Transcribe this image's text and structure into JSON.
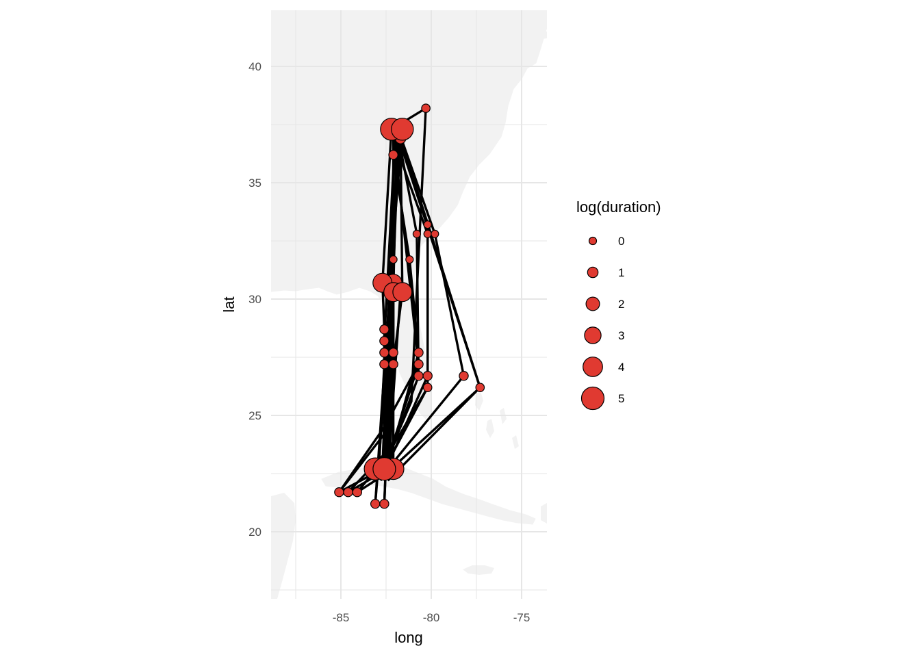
{
  "chart_data": {
    "type": "scatter",
    "subtype": "map-with-paths",
    "basemap": "eastern-us-florida-caribbean",
    "xlabel": "long",
    "ylabel": "lat",
    "xlim": [
      -88.9,
      -73.9
    ],
    "ylim": [
      17.3,
      42.3
    ],
    "x_ticks": [
      -85,
      -80,
      -75
    ],
    "x_tick_labels": [
      "-85",
      "-80",
      "-75"
    ],
    "y_ticks": [
      20,
      25,
      30,
      35,
      40
    ],
    "y_tick_labels": [
      "20",
      "25",
      "30",
      "35",
      "40"
    ],
    "grid": true,
    "legend": {
      "title": "log(duration)",
      "position": "right",
      "entries": [
        {
          "label": "0",
          "value": 0
        },
        {
          "label": "1",
          "value": 1
        },
        {
          "label": "2",
          "value": 2
        },
        {
          "label": "3",
          "value": 3
        },
        {
          "label": "4",
          "value": 4
        },
        {
          "label": "5",
          "value": 5
        }
      ]
    },
    "point_color": "#E03A31",
    "point_outline": "#000000",
    "line_color": "#000000",
    "land_color": "#f2f2f2",
    "grid_color": "#e6e6e6",
    "points": [
      {
        "long": -80.3,
        "lat": 38.2,
        "size": 0.3
      },
      {
        "long": -82.2,
        "lat": 37.3,
        "size": 4.8
      },
      {
        "long": -81.6,
        "lat": 37.3,
        "size": 4.8
      },
      {
        "long": -81.7,
        "lat": 36.9,
        "size": 1.0
      },
      {
        "long": -82.1,
        "lat": 36.2,
        "size": 0.5
      },
      {
        "long": -80.2,
        "lat": 33.2,
        "size": 0.0
      },
      {
        "long": -80.8,
        "lat": 32.8,
        "size": 0.0
      },
      {
        "long": -80.2,
        "lat": 32.8,
        "size": 0.0
      },
      {
        "long": -79.8,
        "lat": 32.8,
        "size": 0.0
      },
      {
        "long": -82.1,
        "lat": 31.7,
        "size": 0.0
      },
      {
        "long": -81.2,
        "lat": 31.7,
        "size": 0.0
      },
      {
        "long": -82.7,
        "lat": 30.7,
        "size": 3.8
      },
      {
        "long": -82.1,
        "lat": 30.7,
        "size": 3.2
      },
      {
        "long": -82.1,
        "lat": 30.3,
        "size": 3.8
      },
      {
        "long": -81.6,
        "lat": 30.3,
        "size": 3.8
      },
      {
        "long": -82.6,
        "lat": 28.7,
        "size": 0.5
      },
      {
        "long": -82.6,
        "lat": 28.2,
        "size": 0.5
      },
      {
        "long": -82.6,
        "lat": 27.7,
        "size": 0.5
      },
      {
        "long": -82.1,
        "lat": 27.7,
        "size": 0.5
      },
      {
        "long": -80.7,
        "lat": 27.7,
        "size": 0.5
      },
      {
        "long": -82.6,
        "lat": 27.2,
        "size": 0.5
      },
      {
        "long": -82.1,
        "lat": 27.2,
        "size": 0.5
      },
      {
        "long": -80.7,
        "lat": 27.2,
        "size": 0.5
      },
      {
        "long": -80.7,
        "lat": 26.7,
        "size": 0.5
      },
      {
        "long": -80.2,
        "lat": 26.7,
        "size": 0.5
      },
      {
        "long": -78.2,
        "lat": 26.7,
        "size": 0.5
      },
      {
        "long": -80.2,
        "lat": 26.2,
        "size": 0.3
      },
      {
        "long": -77.3,
        "lat": 26.2,
        "size": 0.3
      },
      {
        "long": -83.1,
        "lat": 22.7,
        "size": 4.8
      },
      {
        "long": -82.1,
        "lat": 22.7,
        "size": 4.5
      },
      {
        "long": -82.6,
        "lat": 22.7,
        "size": 5.0
      },
      {
        "long": -85.1,
        "lat": 21.7,
        "size": 0.5
      },
      {
        "long": -84.6,
        "lat": 21.7,
        "size": 0.5
      },
      {
        "long": -84.1,
        "lat": 21.7,
        "size": 0.5
      },
      {
        "long": -83.1,
        "lat": 21.2,
        "size": 0.5
      },
      {
        "long": -82.6,
        "lat": 21.2,
        "size": 0.5
      }
    ],
    "paths": [
      [
        [
          -82.2,
          37.3
        ],
        [
          -80.3,
          38.2
        ],
        [
          -81.1,
          25.6
        ],
        [
          -82.7,
          22.7
        ]
      ],
      [
        [
          -82.0,
          37.3
        ],
        [
          -82.7,
          22.7
        ],
        [
          -85.1,
          21.7
        ]
      ],
      [
        [
          -81.9,
          37.3
        ],
        [
          -82.4,
          22.7
        ],
        [
          -84.6,
          21.7
        ]
      ],
      [
        [
          -82.1,
          37.2
        ],
        [
          -82.1,
          22.7
        ],
        [
          -84.1,
          21.7
        ]
      ],
      [
        [
          -81.7,
          37.2
        ],
        [
          -83.1,
          21.2
        ]
      ],
      [
        [
          -81.8,
          37.1
        ],
        [
          -82.6,
          21.2
        ]
      ],
      [
        [
          -81.6,
          37.2
        ],
        [
          -82.2,
          31.7
        ],
        [
          -82.6,
          22.7
        ]
      ],
      [
        [
          -81.7,
          37.0
        ],
        [
          -80.2,
          33.2
        ],
        [
          -80.2,
          26.2
        ],
        [
          -82.6,
          22.7
        ]
      ],
      [
        [
          -81.7,
          37.0
        ],
        [
          -79.8,
          32.8
        ],
        [
          -78.2,
          26.7
        ],
        [
          -82.4,
          22.7
        ]
      ],
      [
        [
          -81.7,
          36.9
        ],
        [
          -77.3,
          26.2
        ],
        [
          -82.5,
          22.5
        ]
      ],
      [
        [
          -81.8,
          36.9
        ],
        [
          -77.3,
          26.2
        ],
        [
          -82.4,
          22.2
        ]
      ],
      [
        [
          -81.8,
          36.9
        ],
        [
          -80.8,
          32.8
        ],
        [
          -80.7,
          26.7
        ],
        [
          -82.7,
          22.4
        ]
      ],
      [
        [
          -82.1,
          36.9
        ],
        [
          -80.2,
          32.8
        ],
        [
          -80.2,
          26.7
        ],
        [
          -82.8,
          22.2
        ]
      ],
      [
        [
          -82.1,
          36.2
        ],
        [
          -81.2,
          31.7
        ],
        [
          -80.7,
          27.7
        ],
        [
          -82.6,
          22.3
        ]
      ],
      [
        [
          -82.0,
          36.5
        ],
        [
          -80.7,
          27.2
        ],
        [
          -82.5,
          22.9
        ]
      ],
      [
        [
          -82.2,
          37.3
        ],
        [
          -82.7,
          30.7
        ],
        [
          -82.6,
          28.7
        ],
        [
          -82.6,
          24.2
        ],
        [
          -85.1,
          21.7
        ]
      ],
      [
        [
          -81.9,
          37.2
        ],
        [
          -82.1,
          30.7
        ],
        [
          -82.1,
          27.7
        ],
        [
          -82.4,
          23.5
        ],
        [
          -84.6,
          21.7
        ]
      ],
      [
        [
          -81.9,
          37.1
        ],
        [
          -82.1,
          30.3
        ],
        [
          -82.6,
          27.7
        ],
        [
          -82.6,
          22.7
        ]
      ],
      [
        [
          -81.7,
          37.1
        ],
        [
          -81.6,
          30.3
        ],
        [
          -82.1,
          27.2
        ],
        [
          -82.3,
          22.6
        ]
      ],
      [
        [
          -82.0,
          37.0
        ],
        [
          -82.6,
          28.2
        ],
        [
          -82.6,
          27.2
        ],
        [
          -82.9,
          22.6
        ]
      ],
      [
        [
          -82.7,
          30.7
        ],
        [
          -81.7,
          30.3
        ],
        [
          -82.4,
          22.5
        ]
      ],
      [
        [
          -82.1,
          30.7
        ],
        [
          -83.1,
          21.2
        ]
      ],
      [
        [
          -82.1,
          30.3
        ],
        [
          -82.6,
          21.2
        ]
      ],
      [
        [
          -80.2,
          26.2
        ],
        [
          -82.5,
          23.2
        ],
        [
          -84.1,
          21.7
        ]
      ],
      [
        [
          -80.7,
          27.2
        ],
        [
          -82.6,
          24.5
        ],
        [
          -85.1,
          21.7
        ]
      ]
    ]
  }
}
